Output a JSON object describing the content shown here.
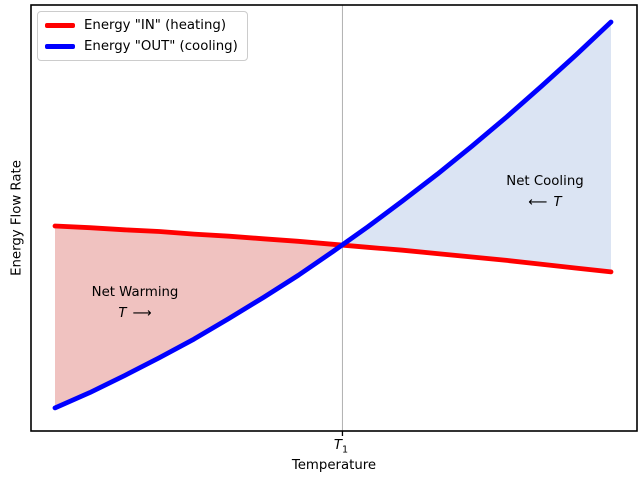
{
  "figure": {
    "background": "#ffffff",
    "legend": {
      "items": [
        {
          "label": "Energy \"IN\" (heating)",
          "color": "#ff0000"
        },
        {
          "label": "Energy \"OUT\" (cooling)",
          "color": "#0000ff"
        }
      ]
    },
    "xlabel": "Temperature",
    "ylabel": "Energy Flow Rate",
    "x_tick": {
      "base": "T",
      "sub": "1"
    }
  },
  "annotations": {
    "warming": {
      "title": "Net Warming",
      "t_label": "T",
      "arrow": "⟶"
    },
    "cooling": {
      "title": "Net Cooling",
      "t_label": "T",
      "arrow": "⟵"
    }
  },
  "chart_data": {
    "type": "line",
    "title": "",
    "xlabel": "Temperature",
    "ylabel": "Energy Flow Rate",
    "axes_numeric": false,
    "x_range_normalized": [
      0,
      1
    ],
    "y_range_normalized": [
      0,
      1
    ],
    "x_ticks": [
      {
        "label": "T1",
        "x": 0.517
      }
    ],
    "gridline_x": 0.517,
    "gridline_color": "#b0b0b0",
    "grid": "single vertical line at T1 only",
    "legend_position": "upper left",
    "x": [
      0,
      0.0625,
      0.125,
      0.1875,
      0.25,
      0.3125,
      0.375,
      0.4375,
      0.5,
      0.5625,
      0.625,
      0.6875,
      0.75,
      0.8125,
      0.875,
      0.9375,
      1
    ],
    "series": [
      {
        "key": "heating",
        "name": "Energy \"IN\" (heating)",
        "color": "#ff0000",
        "values": [
          0.48,
          0.476,
          0.471,
          0.467,
          0.461,
          0.456,
          0.45,
          0.444,
          0.437,
          0.43,
          0.423,
          0.415,
          0.407,
          0.399,
          0.39,
          0.381,
          0.372
        ]
      },
      {
        "key": "cooling",
        "name": "Energy \"OUT\" (cooling)",
        "color": "#0000ff",
        "values": [
          0.052,
          0.088,
          0.128,
          0.17,
          0.214,
          0.262,
          0.312,
          0.364,
          0.42,
          0.478,
          0.539,
          0.602,
          0.668,
          0.737,
          0.809,
          0.883,
          0.96
        ]
      }
    ],
    "intersection": {
      "x": 0.517,
      "y": 0.436
    },
    "regions": [
      {
        "name": "Net Warming",
        "x_range": [
          0,
          0.517
        ],
        "between": [
          "heating",
          "cooling"
        ],
        "fill": "#f0c2c0"
      },
      {
        "name": "Net Cooling",
        "x_range": [
          0.517,
          1
        ],
        "between": [
          "cooling",
          "heating"
        ],
        "fill": "#dbe4f3"
      }
    ]
  }
}
